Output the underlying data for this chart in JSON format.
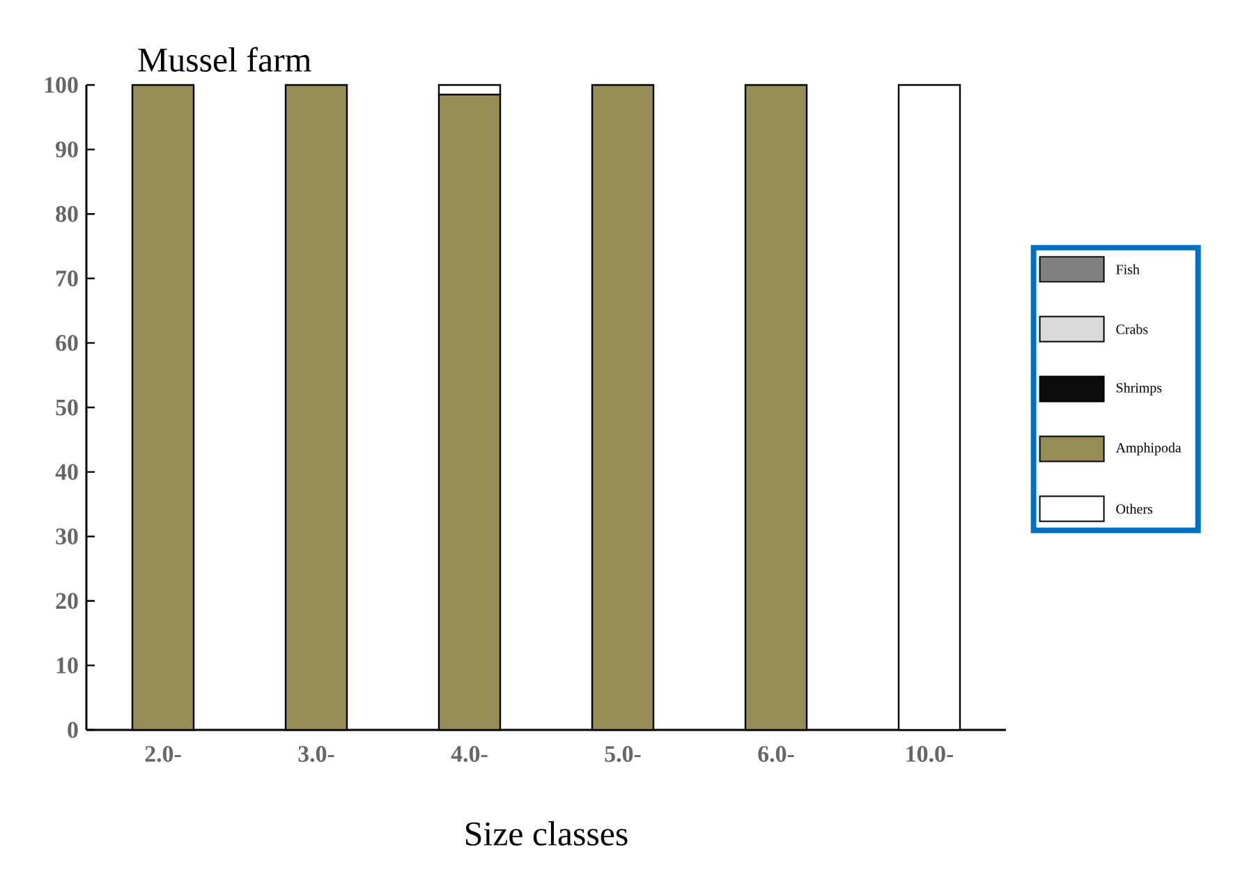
{
  "chart_data": {
    "type": "bar",
    "stacked": true,
    "title": "Mussel farm",
    "xlabel": "Size classes",
    "categories": [
      "2.0-",
      "3.0-",
      "4.0-",
      "5.0-",
      "6.0-",
      "10.0-"
    ],
    "ylim": [
      0,
      100
    ],
    "yticks": [
      0,
      10,
      20,
      30,
      40,
      50,
      60,
      70,
      80,
      90,
      100
    ],
    "legend": "right",
    "grid": false,
    "series": [
      {
        "name": "Fish",
        "color": "#808080",
        "values": [
          0,
          0,
          0,
          0,
          0,
          0
        ]
      },
      {
        "name": "Crabs",
        "color": "#d9d9d9",
        "values": [
          0,
          0,
          0,
          0,
          0,
          0
        ]
      },
      {
        "name": "Shrimps",
        "color": "#0d0d0d",
        "values": [
          0,
          0,
          0,
          0,
          0,
          0
        ]
      },
      {
        "name": "Amphipoda",
        "color": "#968c55",
        "values": [
          100,
          100,
          98.5,
          100,
          100,
          0
        ]
      },
      {
        "name": "Others",
        "color": "#ffffff",
        "values": [
          0,
          0,
          1.5,
          0,
          0,
          100
        ]
      }
    ]
  }
}
